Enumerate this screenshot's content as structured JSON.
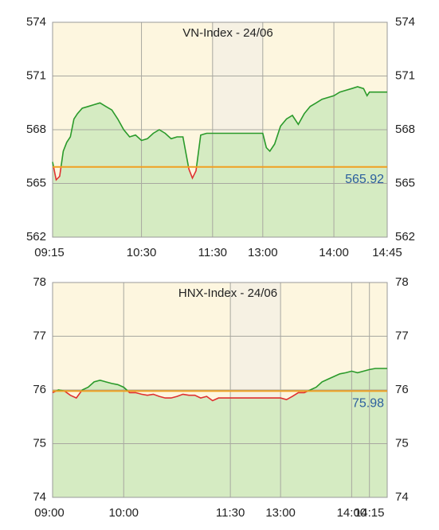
{
  "chart_data": [
    {
      "type": "line",
      "title": "VN-Index - 24/06",
      "xlim": [
        555,
        885
      ],
      "break": [
        690,
        780
      ],
      "xticks": [
        {
          "value": 555,
          "label": "09:15"
        },
        {
          "value": 630,
          "label": "10:30"
        },
        {
          "value": 690,
          "label": "11:30"
        },
        {
          "value": 780,
          "label": "13:00"
        },
        {
          "value": 840,
          "label": "14:00"
        },
        {
          "value": 885,
          "label": "14:45"
        }
      ],
      "ylim": [
        562,
        574
      ],
      "yticks": [
        562,
        565,
        568,
        571,
        574
      ],
      "reference": 565.92,
      "reference_color": "#f0a020",
      "grid": true,
      "series": [
        {
          "color_above": "#2a9a2a",
          "color_below": "#e03030",
          "x": [
            555,
            558,
            561,
            564,
            567,
            570,
            573,
            576,
            580,
            585,
            590,
            595,
            600,
            605,
            610,
            615,
            620,
            625,
            630,
            635,
            640,
            645,
            650,
            655,
            660,
            665,
            670,
            673,
            676,
            680,
            685,
            690,
            780,
            783,
            786,
            790,
            795,
            800,
            805,
            810,
            815,
            820,
            825,
            830,
            835,
            840,
            845,
            850,
            855,
            860,
            865,
            868,
            870,
            875,
            885
          ],
          "values": [
            566.2,
            565.2,
            565.4,
            566.8,
            567.3,
            567.6,
            568.6,
            568.9,
            569.2,
            569.3,
            569.4,
            569.5,
            569.3,
            569.1,
            568.6,
            568.0,
            567.6,
            567.7,
            567.4,
            567.5,
            567.8,
            568.0,
            567.8,
            567.5,
            567.6,
            567.6,
            565.8,
            565.3,
            565.7,
            567.7,
            567.8,
            567.8,
            567.8,
            567.0,
            566.8,
            567.2,
            568.2,
            568.6,
            568.8,
            568.3,
            568.9,
            569.3,
            569.5,
            569.7,
            569.8,
            569.9,
            570.1,
            570.2,
            570.3,
            570.4,
            570.3,
            569.9,
            570.1,
            570.1,
            570.1
          ]
        }
      ]
    },
    {
      "type": "line",
      "title": "HNX-Index - 24/06",
      "xlim": [
        540,
        870
      ],
      "break": [
        690,
        780
      ],
      "xticks": [
        {
          "value": 540,
          "label": "09:00"
        },
        {
          "value": 600,
          "label": "10:00"
        },
        {
          "value": 690,
          "label": "11:30"
        },
        {
          "value": 780,
          "label": "13:00"
        },
        {
          "value": 840,
          "label": "14:00"
        },
        {
          "value": 855,
          "label": "14:15"
        }
      ],
      "ylim": [
        74,
        78
      ],
      "yticks": [
        74,
        75,
        76,
        77,
        78
      ],
      "reference": 75.98,
      "reference_color": "#f0a020",
      "grid": true,
      "series": [
        {
          "color_above": "#2a9a2a",
          "color_below": "#e03030",
          "x": [
            540,
            545,
            550,
            555,
            560,
            565,
            570,
            575,
            580,
            585,
            590,
            595,
            600,
            605,
            610,
            615,
            620,
            625,
            630,
            635,
            640,
            645,
            650,
            655,
            660,
            665,
            670,
            675,
            680,
            690,
            780,
            785,
            790,
            795,
            800,
            805,
            810,
            815,
            820,
            825,
            830,
            835,
            840,
            845,
            850,
            855,
            860,
            870
          ],
          "values": [
            75.95,
            76.0,
            75.98,
            75.9,
            75.85,
            76.0,
            76.05,
            76.15,
            76.18,
            76.15,
            76.12,
            76.1,
            76.05,
            75.95,
            75.95,
            75.92,
            75.9,
            75.92,
            75.88,
            75.85,
            75.85,
            75.88,
            75.92,
            75.9,
            75.9,
            75.85,
            75.88,
            75.8,
            75.85,
            75.85,
            75.85,
            75.82,
            75.88,
            75.95,
            75.95,
            76.0,
            76.05,
            76.15,
            76.2,
            76.25,
            76.3,
            76.32,
            76.35,
            76.32,
            76.35,
            76.38,
            76.4,
            76.4
          ]
        }
      ]
    }
  ]
}
